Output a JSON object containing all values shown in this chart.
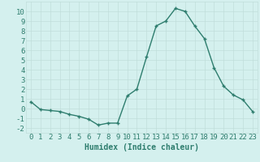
{
  "x": [
    0,
    1,
    2,
    3,
    4,
    5,
    6,
    7,
    8,
    9,
    10,
    11,
    12,
    13,
    14,
    15,
    16,
    17,
    18,
    19,
    20,
    21,
    22,
    23
  ],
  "y": [
    0.7,
    -0.1,
    -0.2,
    -0.3,
    -0.6,
    -0.8,
    -1.1,
    -1.7,
    -1.5,
    -1.5,
    1.3,
    2.0,
    5.3,
    8.5,
    9.0,
    10.3,
    10.0,
    8.5,
    7.2,
    4.2,
    2.3,
    1.4,
    0.9,
    -0.3
  ],
  "line_color": "#2e7d6e",
  "marker": "+",
  "marker_size": 3.5,
  "marker_linewidth": 1.0,
  "line_width": 1.0,
  "xlabel": "Humidex (Indice chaleur)",
  "xlim": [
    -0.5,
    23.5
  ],
  "ylim": [
    -2.5,
    11
  ],
  "yticks": [
    -2,
    -1,
    0,
    1,
    2,
    3,
    4,
    5,
    6,
    7,
    8,
    9,
    10
  ],
  "xticks": [
    0,
    1,
    2,
    3,
    4,
    5,
    6,
    7,
    8,
    9,
    10,
    11,
    12,
    13,
    14,
    15,
    16,
    17,
    18,
    19,
    20,
    21,
    22,
    23
  ],
  "bg_color": "#d4f0ee",
  "grid_color": "#c0deda",
  "font_color": "#2e7d6e",
  "xlabel_fontsize": 7,
  "tick_fontsize": 6.5
}
